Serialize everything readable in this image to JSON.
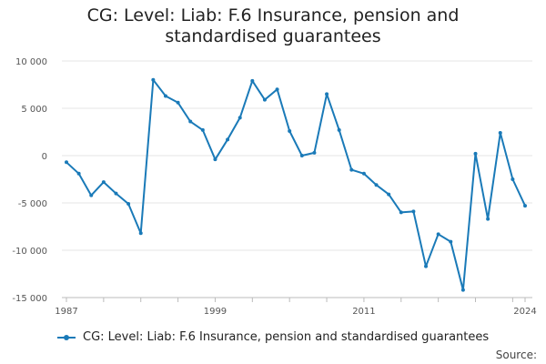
{
  "chart_data": {
    "type": "line",
    "title": "CG: Level: Liab: F.6 Insurance, pension and standardised guarantees",
    "xlabel": "",
    "ylabel": "",
    "xlim": [
      1987,
      2024
    ],
    "ylim": [
      -15000,
      10000
    ],
    "y_ticks": [
      10000,
      5000,
      0,
      -5000,
      -10000,
      -15000
    ],
    "y_tick_labels": [
      "10 000",
      "5 000",
      "0",
      "-5 000",
      "-10 000",
      "-15 000"
    ],
    "x_tick_labels": [
      "1987",
      "1999",
      "2011",
      "2024"
    ],
    "x_tick_values": [
      1987,
      1999,
      2011,
      2024
    ],
    "grid": true,
    "legend_position": "bottom",
    "series": [
      {
        "name": "CG: Level: Liab: F.6 Insurance, pension and standardised guarantees",
        "color": "#1a7ab8",
        "x": [
          1987,
          1988,
          1989,
          1990,
          1991,
          1992,
          1993,
          1994,
          1995,
          1996,
          1997,
          1998,
          1999,
          2000,
          2001,
          2002,
          2003,
          2004,
          2005,
          2006,
          2007,
          2008,
          2009,
          2010,
          2011,
          2012,
          2013,
          2014,
          2015,
          2016,
          2017,
          2018,
          2019,
          2020,
          2021,
          2022,
          2023,
          2024
        ],
        "values": [
          -700,
          -1900,
          -4200,
          -2800,
          -4000,
          -5100,
          -8200,
          8000,
          6300,
          5600,
          3600,
          2700,
          -400,
          1700,
          4000,
          7900,
          5900,
          7000,
          2600,
          0,
          300,
          6500,
          2700,
          -1500,
          -1900,
          -3100,
          -4100,
          -6000,
          -5900,
          -11700,
          -8300,
          -9100,
          -14200,
          200,
          -6700,
          2400,
          -2500,
          -5300
        ]
      }
    ]
  },
  "footer": {
    "source_label": "Source:"
  }
}
